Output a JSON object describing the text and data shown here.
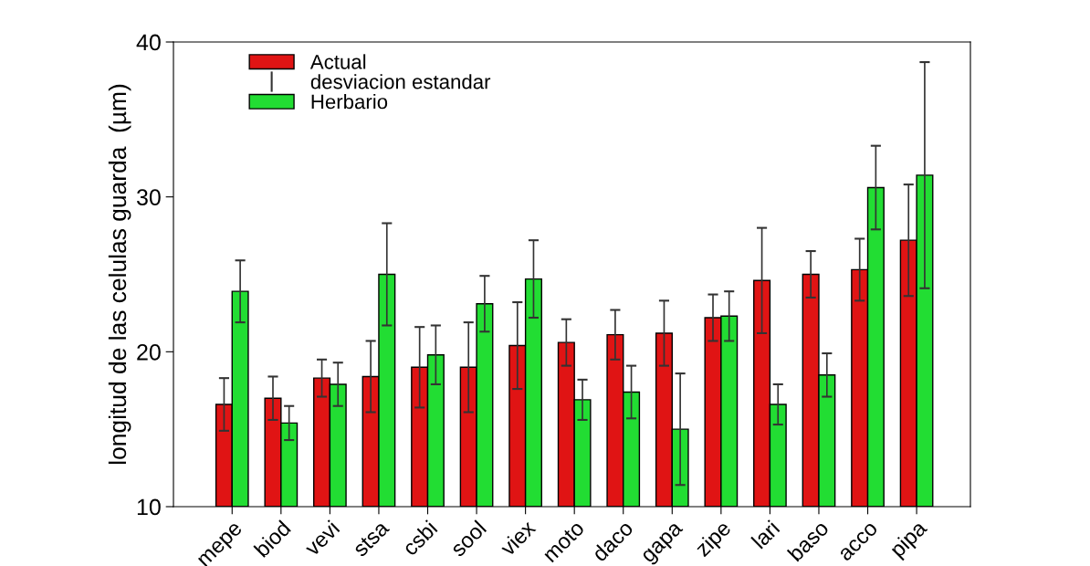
{
  "chart_data": {
    "type": "bar",
    "ylabel": "longitud de las celulas guarda  (µm)",
    "categories": [
      "mepe",
      "biod",
      "vevi",
      "stsa",
      "csbi",
      "sool",
      "viex",
      "moto",
      "daco",
      "gapa",
      "zipe",
      "lari",
      "baso",
      "acco",
      "pipa"
    ],
    "series": [
      {
        "name": "Actual",
        "color": "#e01414",
        "values": [
          16.6,
          17.0,
          18.3,
          18.4,
          19.0,
          19.0,
          20.4,
          20.6,
          21.1,
          21.2,
          22.2,
          24.6,
          25.0,
          25.3,
          27.2
        ],
        "errors": [
          1.7,
          1.4,
          1.2,
          2.3,
          2.6,
          2.9,
          2.8,
          1.5,
          1.6,
          2.1,
          1.5,
          3.4,
          1.5,
          2.0,
          3.6
        ]
      },
      {
        "name": "Herbario",
        "color": "#22dd33",
        "values": [
          23.9,
          15.4,
          17.9,
          25.0,
          19.8,
          23.1,
          24.7,
          16.9,
          17.4,
          15.0,
          22.3,
          16.6,
          18.5,
          30.6,
          31.4
        ],
        "errors": [
          2.0,
          1.1,
          1.4,
          3.3,
          1.9,
          1.8,
          2.5,
          1.3,
          1.7,
          3.6,
          1.6,
          1.3,
          1.4,
          2.7,
          7.3
        ]
      }
    ],
    "annotations": [
      "desviacion estandar"
    ],
    "ylim": [
      10,
      40
    ],
    "yticks": [
      10,
      20,
      30,
      40
    ],
    "grid": false,
    "legend": "top left"
  }
}
